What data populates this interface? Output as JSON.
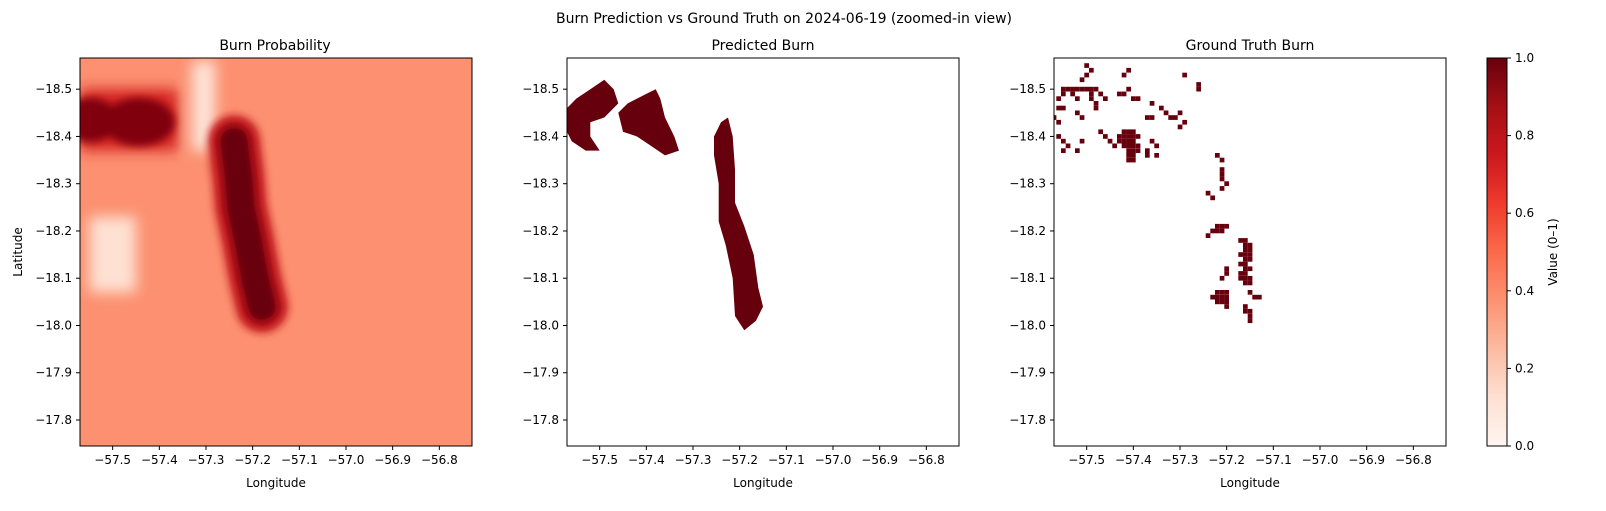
{
  "figure": {
    "suptitle": "Burn Prediction vs Ground Truth on 2024-06-19 (zoomed-in view)"
  },
  "colors": {
    "colormap": "Reds",
    "burn": "#67000d",
    "background": "#ffffff"
  },
  "chart_data": [
    {
      "type": "heatmap",
      "title": "Burn Probability",
      "xlabel": "Longitude",
      "ylabel": "Latitude",
      "xlim": [
        -57.57,
        -56.73
      ],
      "ylim": [
        -18.566,
        -17.745
      ],
      "xticks": [
        "−57.5",
        "−57.4",
        "−57.3",
        "−57.2",
        "−57.1",
        "−57.0",
        "−56.9",
        "−56.8"
      ],
      "yticks": [
        "−18.5",
        "−18.4",
        "−18.3",
        "−18.2",
        "−18.1",
        "−18.0",
        "−17.9",
        "−17.8"
      ],
      "background_value": 0.38,
      "high_probability_core": {
        "value": 1.0,
        "path": [
          [
            -57.24,
            -18.39
          ],
          [
            -57.23,
            -18.31
          ],
          [
            -57.225,
            -18.25
          ],
          [
            -57.21,
            -18.18
          ],
          [
            -57.195,
            -18.1
          ],
          [
            -57.18,
            -18.04
          ]
        ]
      },
      "high_probability_cluster": {
        "value": 0.95,
        "lon_range": [
          -57.57,
          -57.36
        ],
        "lat_range": [
          -18.5,
          -18.37
        ]
      },
      "low_probability_regions": [
        {
          "lon_range": [
            -57.55,
            -57.45
          ],
          "lat_range": [
            -18.23,
            -18.07
          ],
          "value": 0.12
        },
        {
          "lon_range": [
            -57.33,
            -57.28
          ],
          "lat_range": [
            -18.56,
            -18.37
          ],
          "value": 0.1
        }
      ]
    },
    {
      "type": "heatmap",
      "title": "Predicted Burn",
      "xlabel": "Longitude",
      "xlim": [
        -57.57,
        -56.73
      ],
      "ylim": [
        -18.566,
        -17.745
      ],
      "xticks": [
        "−57.5",
        "−57.4",
        "−57.3",
        "−57.2",
        "−57.1",
        "−57.0",
        "−56.9",
        "−56.8"
      ],
      "yticks": [
        "−18.5",
        "−18.4",
        "−18.3",
        "−18.2",
        "−18.1",
        "−18.0",
        "−17.9",
        "−17.8"
      ],
      "values": [
        0,
        1
      ],
      "burned_regions": [
        {
          "name": "west patch",
          "outline": [
            [
              -57.57,
              -18.46
            ],
            [
              -57.55,
              -18.48
            ],
            [
              -57.52,
              -18.5
            ],
            [
              -57.49,
              -18.52
            ],
            [
              -57.47,
              -18.5
            ],
            [
              -57.46,
              -18.47
            ],
            [
              -57.49,
              -18.44
            ],
            [
              -57.52,
              -18.43
            ],
            [
              -57.52,
              -18.4
            ],
            [
              -57.5,
              -18.37
            ],
            [
              -57.53,
              -18.37
            ],
            [
              -57.56,
              -18.39
            ],
            [
              -57.57,
              -18.41
            ]
          ]
        },
        {
          "name": "north patch",
          "outline": [
            [
              -57.46,
              -18.45
            ],
            [
              -57.44,
              -18.47
            ],
            [
              -57.42,
              -18.48
            ],
            [
              -57.4,
              -18.49
            ],
            [
              -57.38,
              -18.5
            ],
            [
              -57.37,
              -18.48
            ],
            [
              -57.36,
              -18.44
            ],
            [
              -57.34,
              -18.4
            ],
            [
              -57.33,
              -18.37
            ],
            [
              -57.36,
              -18.36
            ],
            [
              -57.39,
              -18.38
            ],
            [
              -57.42,
              -18.4
            ],
            [
              -57.45,
              -18.41
            ]
          ]
        },
        {
          "name": "south elongated patch",
          "outline": [
            [
              -57.255,
              -18.4
            ],
            [
              -57.24,
              -18.43
            ],
            [
              -57.225,
              -18.44
            ],
            [
              -57.215,
              -18.4
            ],
            [
              -57.21,
              -18.33
            ],
            [
              -57.21,
              -18.26
            ],
            [
              -57.19,
              -18.21
            ],
            [
              -57.17,
              -18.15
            ],
            [
              -57.16,
              -18.08
            ],
            [
              -57.15,
              -18.04
            ],
            [
              -57.165,
              -18.01
            ],
            [
              -57.19,
              -17.99
            ],
            [
              -57.21,
              -18.02
            ],
            [
              -57.215,
              -18.1
            ],
            [
              -57.23,
              -18.17
            ],
            [
              -57.245,
              -18.22
            ],
            [
              -57.245,
              -18.3
            ],
            [
              -57.255,
              -18.36
            ]
          ]
        }
      ]
    },
    {
      "type": "heatmap",
      "title": "Ground Truth Burn",
      "xlabel": "Longitude",
      "xlim": [
        -57.57,
        -56.73
      ],
      "ylim": [
        -18.566,
        -17.745
      ],
      "xticks": [
        "−57.5",
        "−57.4",
        "−57.3",
        "−57.2",
        "−57.1",
        "−57.0",
        "−56.9",
        "−56.8"
      ],
      "yticks": [
        "−18.5",
        "−18.4",
        "−18.3",
        "−18.2",
        "−18.1",
        "−18.0",
        "−17.9",
        "−17.8"
      ],
      "values": [
        0,
        1
      ],
      "burned_pixels": [
        [
          -57.5,
          -18.55
        ],
        [
          -57.5,
          -18.53
        ],
        [
          -57.49,
          -18.54
        ],
        [
          -57.51,
          -18.52
        ],
        [
          -57.42,
          -18.53
        ],
        [
          -57.41,
          -18.54
        ],
        [
          -57.29,
          -18.53
        ],
        [
          -57.26,
          -18.51
        ],
        [
          -57.26,
          -18.5
        ],
        [
          -57.55,
          -18.5
        ],
        [
          -57.54,
          -18.5
        ],
        [
          -57.53,
          -18.5
        ],
        [
          -57.52,
          -18.5
        ],
        [
          -57.51,
          -18.5
        ],
        [
          -57.5,
          -18.5
        ],
        [
          -57.49,
          -18.5
        ],
        [
          -57.48,
          -18.5
        ],
        [
          -57.55,
          -18.49
        ],
        [
          -57.53,
          -18.49
        ],
        [
          -57.49,
          -18.49
        ],
        [
          -57.47,
          -18.49
        ],
        [
          -57.56,
          -18.48
        ],
        [
          -57.52,
          -18.48
        ],
        [
          -57.49,
          -18.48
        ],
        [
          -57.46,
          -18.48
        ],
        [
          -57.56,
          -18.46
        ],
        [
          -57.55,
          -18.46
        ],
        [
          -57.52,
          -18.45
        ],
        [
          -57.51,
          -18.44
        ],
        [
          -57.48,
          -18.47
        ],
        [
          -57.48,
          -18.46
        ],
        [
          -57.57,
          -18.44
        ],
        [
          -57.56,
          -18.43
        ],
        [
          -57.43,
          -18.49
        ],
        [
          -57.42,
          -18.49
        ],
        [
          -57.41,
          -18.5
        ],
        [
          -57.4,
          -18.48
        ],
        [
          -57.39,
          -18.48
        ],
        [
          -57.36,
          -18.47
        ],
        [
          -57.34,
          -18.46
        ],
        [
          -57.33,
          -18.45
        ],
        [
          -57.37,
          -18.44
        ],
        [
          -57.36,
          -18.44
        ],
        [
          -57.32,
          -18.44
        ],
        [
          -57.31,
          -18.44
        ],
        [
          -57.3,
          -18.42
        ],
        [
          -57.29,
          -18.43
        ],
        [
          -57.3,
          -18.45
        ],
        [
          -57.42,
          -18.41
        ],
        [
          -57.41,
          -18.41
        ],
        [
          -57.4,
          -18.41
        ],
        [
          -57.43,
          -18.4
        ],
        [
          -57.42,
          -18.4
        ],
        [
          -57.41,
          -18.4
        ],
        [
          -57.4,
          -18.4
        ],
        [
          -57.39,
          -18.4
        ],
        [
          -57.43,
          -18.39
        ],
        [
          -57.42,
          -18.39
        ],
        [
          -57.41,
          -18.39
        ],
        [
          -57.4,
          -18.39
        ],
        [
          -57.42,
          -18.38
        ],
        [
          -57.41,
          -18.38
        ],
        [
          -57.4,
          -18.38
        ],
        [
          -57.39,
          -18.38
        ],
        [
          -57.41,
          -18.37
        ],
        [
          -57.4,
          -18.37
        ],
        [
          -57.39,
          -18.37
        ],
        [
          -57.41,
          -18.36
        ],
        [
          -57.4,
          -18.36
        ],
        [
          -57.41,
          -18.35
        ],
        [
          -57.4,
          -18.35
        ],
        [
          -57.36,
          -18.39
        ],
        [
          -57.35,
          -18.38
        ],
        [
          -57.37,
          -18.37
        ],
        [
          -57.37,
          -18.36
        ],
        [
          -57.35,
          -18.36
        ],
        [
          -57.47,
          -18.41
        ],
        [
          -57.46,
          -18.4
        ],
        [
          -57.45,
          -18.39
        ],
        [
          -57.44,
          -18.38
        ],
        [
          -57.51,
          -18.39
        ],
        [
          -57.54,
          -18.38
        ],
        [
          -57.55,
          -18.37
        ],
        [
          -57.52,
          -18.37
        ],
        [
          -57.56,
          -18.4
        ],
        [
          -57.55,
          -18.39
        ],
        [
          -57.22,
          -18.36
        ],
        [
          -57.21,
          -18.35
        ],
        [
          -57.21,
          -18.33
        ],
        [
          -57.21,
          -18.32
        ],
        [
          -57.21,
          -18.31
        ],
        [
          -57.21,
          -18.29
        ],
        [
          -57.2,
          -18.3
        ],
        [
          -57.24,
          -18.28
        ],
        [
          -57.23,
          -18.27
        ],
        [
          -57.22,
          -18.21
        ],
        [
          -57.21,
          -18.21
        ],
        [
          -57.2,
          -18.21
        ],
        [
          -57.21,
          -18.2
        ],
        [
          -57.22,
          -18.2
        ],
        [
          -57.24,
          -18.19
        ],
        [
          -57.23,
          -18.2
        ],
        [
          -57.17,
          -18.18
        ],
        [
          -57.16,
          -18.18
        ],
        [
          -57.16,
          -18.17
        ],
        [
          -57.15,
          -18.17
        ],
        [
          -57.16,
          -18.16
        ],
        [
          -57.15,
          -18.16
        ],
        [
          -57.17,
          -18.15
        ],
        [
          -57.16,
          -18.15
        ],
        [
          -57.15,
          -18.15
        ],
        [
          -57.16,
          -18.14
        ],
        [
          -57.15,
          -18.14
        ],
        [
          -57.17,
          -18.13
        ],
        [
          -57.16,
          -18.13
        ],
        [
          -57.15,
          -18.12
        ],
        [
          -57.16,
          -18.12
        ],
        [
          -57.17,
          -18.11
        ],
        [
          -57.16,
          -18.11
        ],
        [
          -57.17,
          -18.1
        ],
        [
          -57.16,
          -18.1
        ],
        [
          -57.15,
          -18.1
        ],
        [
          -57.16,
          -18.09
        ],
        [
          -57.15,
          -18.09
        ],
        [
          -57.15,
          -18.07
        ],
        [
          -57.14,
          -18.06
        ],
        [
          -57.13,
          -18.06
        ],
        [
          -57.2,
          -18.12
        ],
        [
          -57.2,
          -18.11
        ],
        [
          -57.21,
          -18.1
        ],
        [
          -57.22,
          -18.07
        ],
        [
          -57.21,
          -18.07
        ],
        [
          -57.2,
          -18.07
        ],
        [
          -57.23,
          -18.06
        ],
        [
          -57.22,
          -18.06
        ],
        [
          -57.21,
          -18.06
        ],
        [
          -57.2,
          -18.06
        ],
        [
          -57.22,
          -18.05
        ],
        [
          -57.21,
          -18.05
        ],
        [
          -57.2,
          -18.05
        ],
        [
          -57.2,
          -18.04
        ],
        [
          -57.16,
          -18.04
        ],
        [
          -57.15,
          -18.03
        ],
        [
          -57.16,
          -18.03
        ],
        [
          -57.15,
          -18.02
        ],
        [
          -57.15,
          -18.01
        ]
      ]
    }
  ],
  "colorbar": {
    "label": "Value (0–1)",
    "range": [
      0,
      1
    ],
    "ticks": [
      "0.0",
      "0.2",
      "0.4",
      "0.6",
      "0.8",
      "1.0"
    ]
  }
}
